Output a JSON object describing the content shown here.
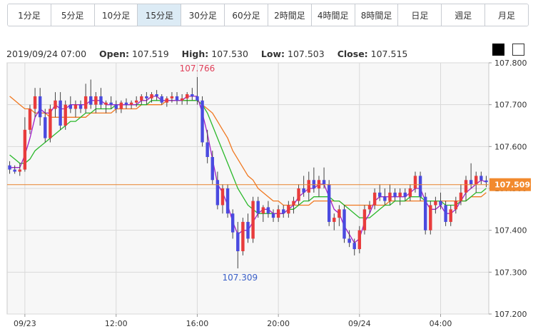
{
  "timeframes": [
    "1分足",
    "5分足",
    "10分足",
    "15分足",
    "30分足",
    "60分足",
    "2時間足",
    "4時間足",
    "8時間足",
    "日足",
    "週足",
    "月足"
  ],
  "active_timeframe": "15分足",
  "ohlc": {
    "date": "2019/09/24 07:00",
    "open_label": "Open:",
    "open": "107.519",
    "high_label": "High:",
    "high": "107.530",
    "low_label": "Low:",
    "low": "107.503",
    "close_label": "Close:",
    "close": "107.515"
  },
  "theme_buttons": [
    "black-theme",
    "white-theme"
  ],
  "colors": {
    "up": "#e83c3c",
    "down": "#4a4ae0",
    "ma_short": "#a020c8",
    "ma_mid": "#2ab82a",
    "ma_long": "#f07820",
    "price_line": "#e8822a",
    "price_box": "#f28a2e",
    "grid": "#d9d9d9",
    "plot_bg": "#f7f7f7"
  },
  "chart_data": {
    "type": "candlestick",
    "ylim": [
      107.2,
      107.8
    ],
    "yticks": [
      "107.800",
      "107.700",
      "107.600",
      "107.500",
      "107.400",
      "107.300",
      "107.200"
    ],
    "xticks": [
      {
        "label": "09/23",
        "index": 3
      },
      {
        "label": "12:00",
        "index": 21
      },
      {
        "label": "16:00",
        "index": 37
      },
      {
        "label": "20:00",
        "index": 53
      },
      {
        "label": "09/24",
        "index": 69
      },
      {
        "label": "04:00",
        "index": 85
      }
    ],
    "current_price": "107.509",
    "annotations": {
      "high": {
        "label": "107.766",
        "index": 37
      },
      "low": {
        "label": "107.309",
        "index": 45
      }
    },
    "candles": [
      [
        107.555,
        107.565,
        107.535,
        107.545
      ],
      [
        107.545,
        107.555,
        107.535,
        107.54
      ],
      [
        107.54,
        107.56,
        107.53,
        107.545
      ],
      [
        107.545,
        107.67,
        107.54,
        107.64
      ],
      [
        107.64,
        107.7,
        107.63,
        107.69
      ],
      [
        107.69,
        107.74,
        107.67,
        107.72
      ],
      [
        107.72,
        107.74,
        107.65,
        107.67
      ],
      [
        107.67,
        107.69,
        107.61,
        107.62
      ],
      [
        107.62,
        107.7,
        107.61,
        107.69
      ],
      [
        107.69,
        107.73,
        107.67,
        107.71
      ],
      [
        107.71,
        107.73,
        107.64,
        107.65
      ],
      [
        107.65,
        107.71,
        107.64,
        107.7
      ],
      [
        107.7,
        107.72,
        107.68,
        107.69
      ],
      [
        107.69,
        107.71,
        107.67,
        107.7
      ],
      [
        107.7,
        107.71,
        107.68,
        107.69
      ],
      [
        107.69,
        107.75,
        107.68,
        107.72
      ],
      [
        107.72,
        107.76,
        107.69,
        107.7
      ],
      [
        107.7,
        107.73,
        107.68,
        107.72
      ],
      [
        107.72,
        107.74,
        107.69,
        107.7
      ],
      [
        107.7,
        107.71,
        107.68,
        107.705
      ],
      [
        107.705,
        107.72,
        107.69,
        107.7
      ],
      [
        107.7,
        107.71,
        107.68,
        107.69
      ],
      [
        107.69,
        107.71,
        107.68,
        107.705
      ],
      [
        107.705,
        107.715,
        107.69,
        107.7
      ],
      [
        107.7,
        107.71,
        107.69,
        107.705
      ],
      [
        107.705,
        107.72,
        107.695,
        107.71
      ],
      [
        107.71,
        107.725,
        107.7,
        107.72
      ],
      [
        107.72,
        107.73,
        107.7,
        107.715
      ],
      [
        107.715,
        107.73,
        107.705,
        107.725
      ],
      [
        107.725,
        107.735,
        107.71,
        107.72
      ],
      [
        107.72,
        107.725,
        107.7,
        107.705
      ],
      [
        107.705,
        107.72,
        107.695,
        107.715
      ],
      [
        107.715,
        107.73,
        107.705,
        107.72
      ],
      [
        107.72,
        107.73,
        107.7,
        107.71
      ],
      [
        107.71,
        107.725,
        107.7,
        107.715
      ],
      [
        107.715,
        107.73,
        107.7,
        107.725
      ],
      [
        107.725,
        107.74,
        107.71,
        107.72
      ],
      [
        107.72,
        107.766,
        107.7,
        107.71
      ],
      [
        107.71,
        107.72,
        107.6,
        107.61
      ],
      [
        107.61,
        107.64,
        107.56,
        107.575
      ],
      [
        107.575,
        107.59,
        107.51,
        107.52
      ],
      [
        107.52,
        107.54,
        107.45,
        107.46
      ],
      [
        107.46,
        107.51,
        107.44,
        107.5
      ],
      [
        107.5,
        107.51,
        107.43,
        107.44
      ],
      [
        107.44,
        107.45,
        107.38,
        107.395
      ],
      [
        107.395,
        107.42,
        107.309,
        107.35
      ],
      [
        107.35,
        107.43,
        107.34,
        107.42
      ],
      [
        107.42,
        107.44,
        107.37,
        107.38
      ],
      [
        107.38,
        107.48,
        107.37,
        107.47
      ],
      [
        107.47,
        107.48,
        107.43,
        107.44
      ],
      [
        107.44,
        107.46,
        107.42,
        107.455
      ],
      [
        107.455,
        107.47,
        107.43,
        107.44
      ],
      [
        107.44,
        107.45,
        107.42,
        107.43
      ],
      [
        107.43,
        107.46,
        107.42,
        107.45
      ],
      [
        107.45,
        107.46,
        107.43,
        107.44
      ],
      [
        107.44,
        107.47,
        107.43,
        107.46
      ],
      [
        107.46,
        107.48,
        107.44,
        107.47
      ],
      [
        107.47,
        107.51,
        107.46,
        107.5
      ],
      [
        107.5,
        107.53,
        107.48,
        107.49
      ],
      [
        107.49,
        107.54,
        107.47,
        107.52
      ],
      [
        107.52,
        107.55,
        107.49,
        107.5
      ],
      [
        107.5,
        107.53,
        107.48,
        107.52
      ],
      [
        107.52,
        107.55,
        107.5,
        107.51
      ],
      [
        107.51,
        107.52,
        107.41,
        107.42
      ],
      [
        107.42,
        107.44,
        107.4,
        107.43
      ],
      [
        107.43,
        107.46,
        107.41,
        107.45
      ],
      [
        107.45,
        107.46,
        107.37,
        107.38
      ],
      [
        107.38,
        107.4,
        107.36,
        107.37
      ],
      [
        107.37,
        107.38,
        107.34,
        107.355
      ],
      [
        107.355,
        107.41,
        107.345,
        107.4
      ],
      [
        107.4,
        107.46,
        107.39,
        107.45
      ],
      [
        107.45,
        107.47,
        107.44,
        107.46
      ],
      [
        107.46,
        107.5,
        107.45,
        107.49
      ],
      [
        107.49,
        107.51,
        107.47,
        107.48
      ],
      [
        107.48,
        107.5,
        107.46,
        107.47
      ],
      [
        107.47,
        107.51,
        107.46,
        107.49
      ],
      [
        107.49,
        107.5,
        107.47,
        107.48
      ],
      [
        107.48,
        107.5,
        107.46,
        107.49
      ],
      [
        107.49,
        107.5,
        107.47,
        107.48
      ],
      [
        107.48,
        107.51,
        107.47,
        107.5
      ],
      [
        107.5,
        107.54,
        107.49,
        107.53
      ],
      [
        107.53,
        107.54,
        107.47,
        107.48
      ],
      [
        107.48,
        107.49,
        107.39,
        107.4
      ],
      [
        107.4,
        107.47,
        107.39,
        107.46
      ],
      [
        107.46,
        107.48,
        107.44,
        107.47
      ],
      [
        107.47,
        107.49,
        107.45,
        107.46
      ],
      [
        107.46,
        107.47,
        107.41,
        107.42
      ],
      [
        107.42,
        107.46,
        107.41,
        107.45
      ],
      [
        107.45,
        107.48,
        107.44,
        107.47
      ],
      [
        107.47,
        107.51,
        107.46,
        107.49
      ],
      [
        107.49,
        107.53,
        107.47,
        107.52
      ],
      [
        107.52,
        107.56,
        107.5,
        107.51
      ],
      [
        107.51,
        107.54,
        107.49,
        107.53
      ],
      [
        107.53,
        107.54,
        107.51,
        107.52
      ],
      [
        107.519,
        107.53,
        107.503,
        107.515
      ]
    ],
    "ma_short": [
      107.55,
      107.55,
      107.55,
      107.58,
      107.62,
      107.67,
      107.69,
      107.68,
      107.68,
      107.7,
      107.69,
      107.69,
      107.7,
      107.7,
      107.7,
      107.7,
      107.71,
      107.71,
      107.71,
      107.7,
      107.7,
      107.7,
      107.7,
      107.7,
      107.7,
      107.7,
      107.71,
      107.71,
      107.72,
      107.72,
      107.71,
      107.71,
      107.71,
      107.71,
      107.71,
      107.72,
      107.72,
      107.72,
      107.68,
      107.63,
      107.57,
      107.51,
      107.49,
      107.46,
      107.42,
      107.39,
      107.4,
      107.4,
      107.42,
      107.44,
      107.45,
      107.45,
      107.44,
      107.44,
      107.44,
      107.45,
      107.46,
      107.48,
      107.49,
      107.5,
      107.5,
      107.51,
      107.51,
      107.48,
      107.45,
      107.44,
      107.41,
      107.39,
      107.37,
      107.38,
      107.42,
      107.44,
      107.47,
      107.48,
      107.48,
      107.48,
      107.48,
      107.48,
      107.48,
      107.49,
      107.5,
      107.5,
      107.47,
      107.45,
      107.45,
      107.46,
      107.44,
      107.44,
      107.45,
      107.47,
      107.49,
      107.5,
      107.51,
      107.52,
      107.515
    ],
    "ma_mid": [
      107.58,
      107.57,
      107.56,
      107.56,
      107.57,
      107.59,
      107.6,
      107.61,
      107.62,
      107.63,
      107.64,
      107.65,
      107.66,
      107.66,
      107.67,
      107.68,
      107.68,
      107.69,
      107.69,
      107.69,
      107.69,
      107.7,
      107.7,
      107.7,
      107.7,
      107.7,
      107.7,
      107.7,
      107.71,
      107.71,
      107.71,
      107.71,
      107.71,
      107.71,
      107.71,
      107.71,
      107.71,
      107.71,
      107.7,
      107.68,
      107.65,
      107.62,
      107.59,
      107.56,
      107.53,
      107.5,
      107.48,
      107.46,
      107.45,
      107.44,
      107.44,
      107.44,
      107.44,
      107.44,
      107.44,
      107.45,
      107.45,
      107.46,
      107.47,
      107.47,
      107.48,
      107.48,
      107.48,
      107.48,
      107.47,
      107.47,
      107.46,
      107.45,
      107.44,
      107.43,
      107.43,
      107.43,
      107.44,
      107.45,
      107.46,
      107.46,
      107.47,
      107.47,
      107.47,
      107.48,
      107.48,
      107.48,
      107.47,
      107.47,
      107.47,
      107.47,
      107.46,
      107.46,
      107.46,
      107.47,
      107.47,
      107.48,
      107.49,
      107.49,
      107.5
    ],
    "ma_long": [
      107.72,
      107.71,
      107.7,
      107.69,
      107.69,
      107.68,
      107.68,
      107.68,
      107.67,
      107.67,
      107.67,
      107.67,
      107.67,
      107.67,
      107.67,
      107.67,
      107.68,
      107.68,
      107.68,
      107.68,
      107.68,
      107.69,
      107.69,
      107.69,
      107.69,
      107.69,
      107.7,
      107.7,
      107.7,
      107.7,
      107.7,
      107.71,
      107.71,
      107.71,
      107.71,
      107.71,
      107.71,
      107.71,
      107.7,
      107.69,
      107.68,
      107.66,
      107.64,
      107.62,
      107.59,
      107.57,
      107.55,
      107.53,
      107.52,
      107.5,
      107.49,
      107.48,
      107.47,
      107.47,
      107.46,
      107.46,
      107.46,
      107.46,
      107.46,
      107.46,
      107.47,
      107.47,
      107.47,
      107.47,
      107.47,
      107.47,
      107.46,
      107.46,
      107.46,
      107.46,
      107.46,
      107.46,
      107.46,
      107.46,
      107.46,
      107.47,
      107.47,
      107.47,
      107.47,
      107.47,
      107.47,
      107.47,
      107.47,
      107.47,
      107.47,
      107.47,
      107.47,
      107.47,
      107.47,
      107.47,
      107.47,
      107.48,
      107.48,
      107.48,
      107.49
    ]
  }
}
